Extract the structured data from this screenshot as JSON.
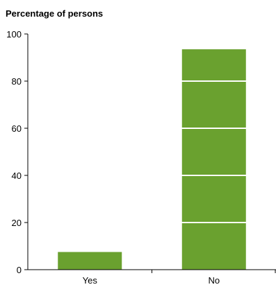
{
  "chart_data": {
    "type": "bar",
    "title": "Percentage of persons",
    "categories": [
      "Yes",
      "No"
    ],
    "values": [
      7.5,
      93.5
    ],
    "ylim": [
      0,
      100
    ],
    "yticks": [
      0,
      20,
      40,
      60,
      80,
      100
    ],
    "bar_color": "#6aa12f",
    "gridlines_over_bars": true,
    "grid": false
  }
}
